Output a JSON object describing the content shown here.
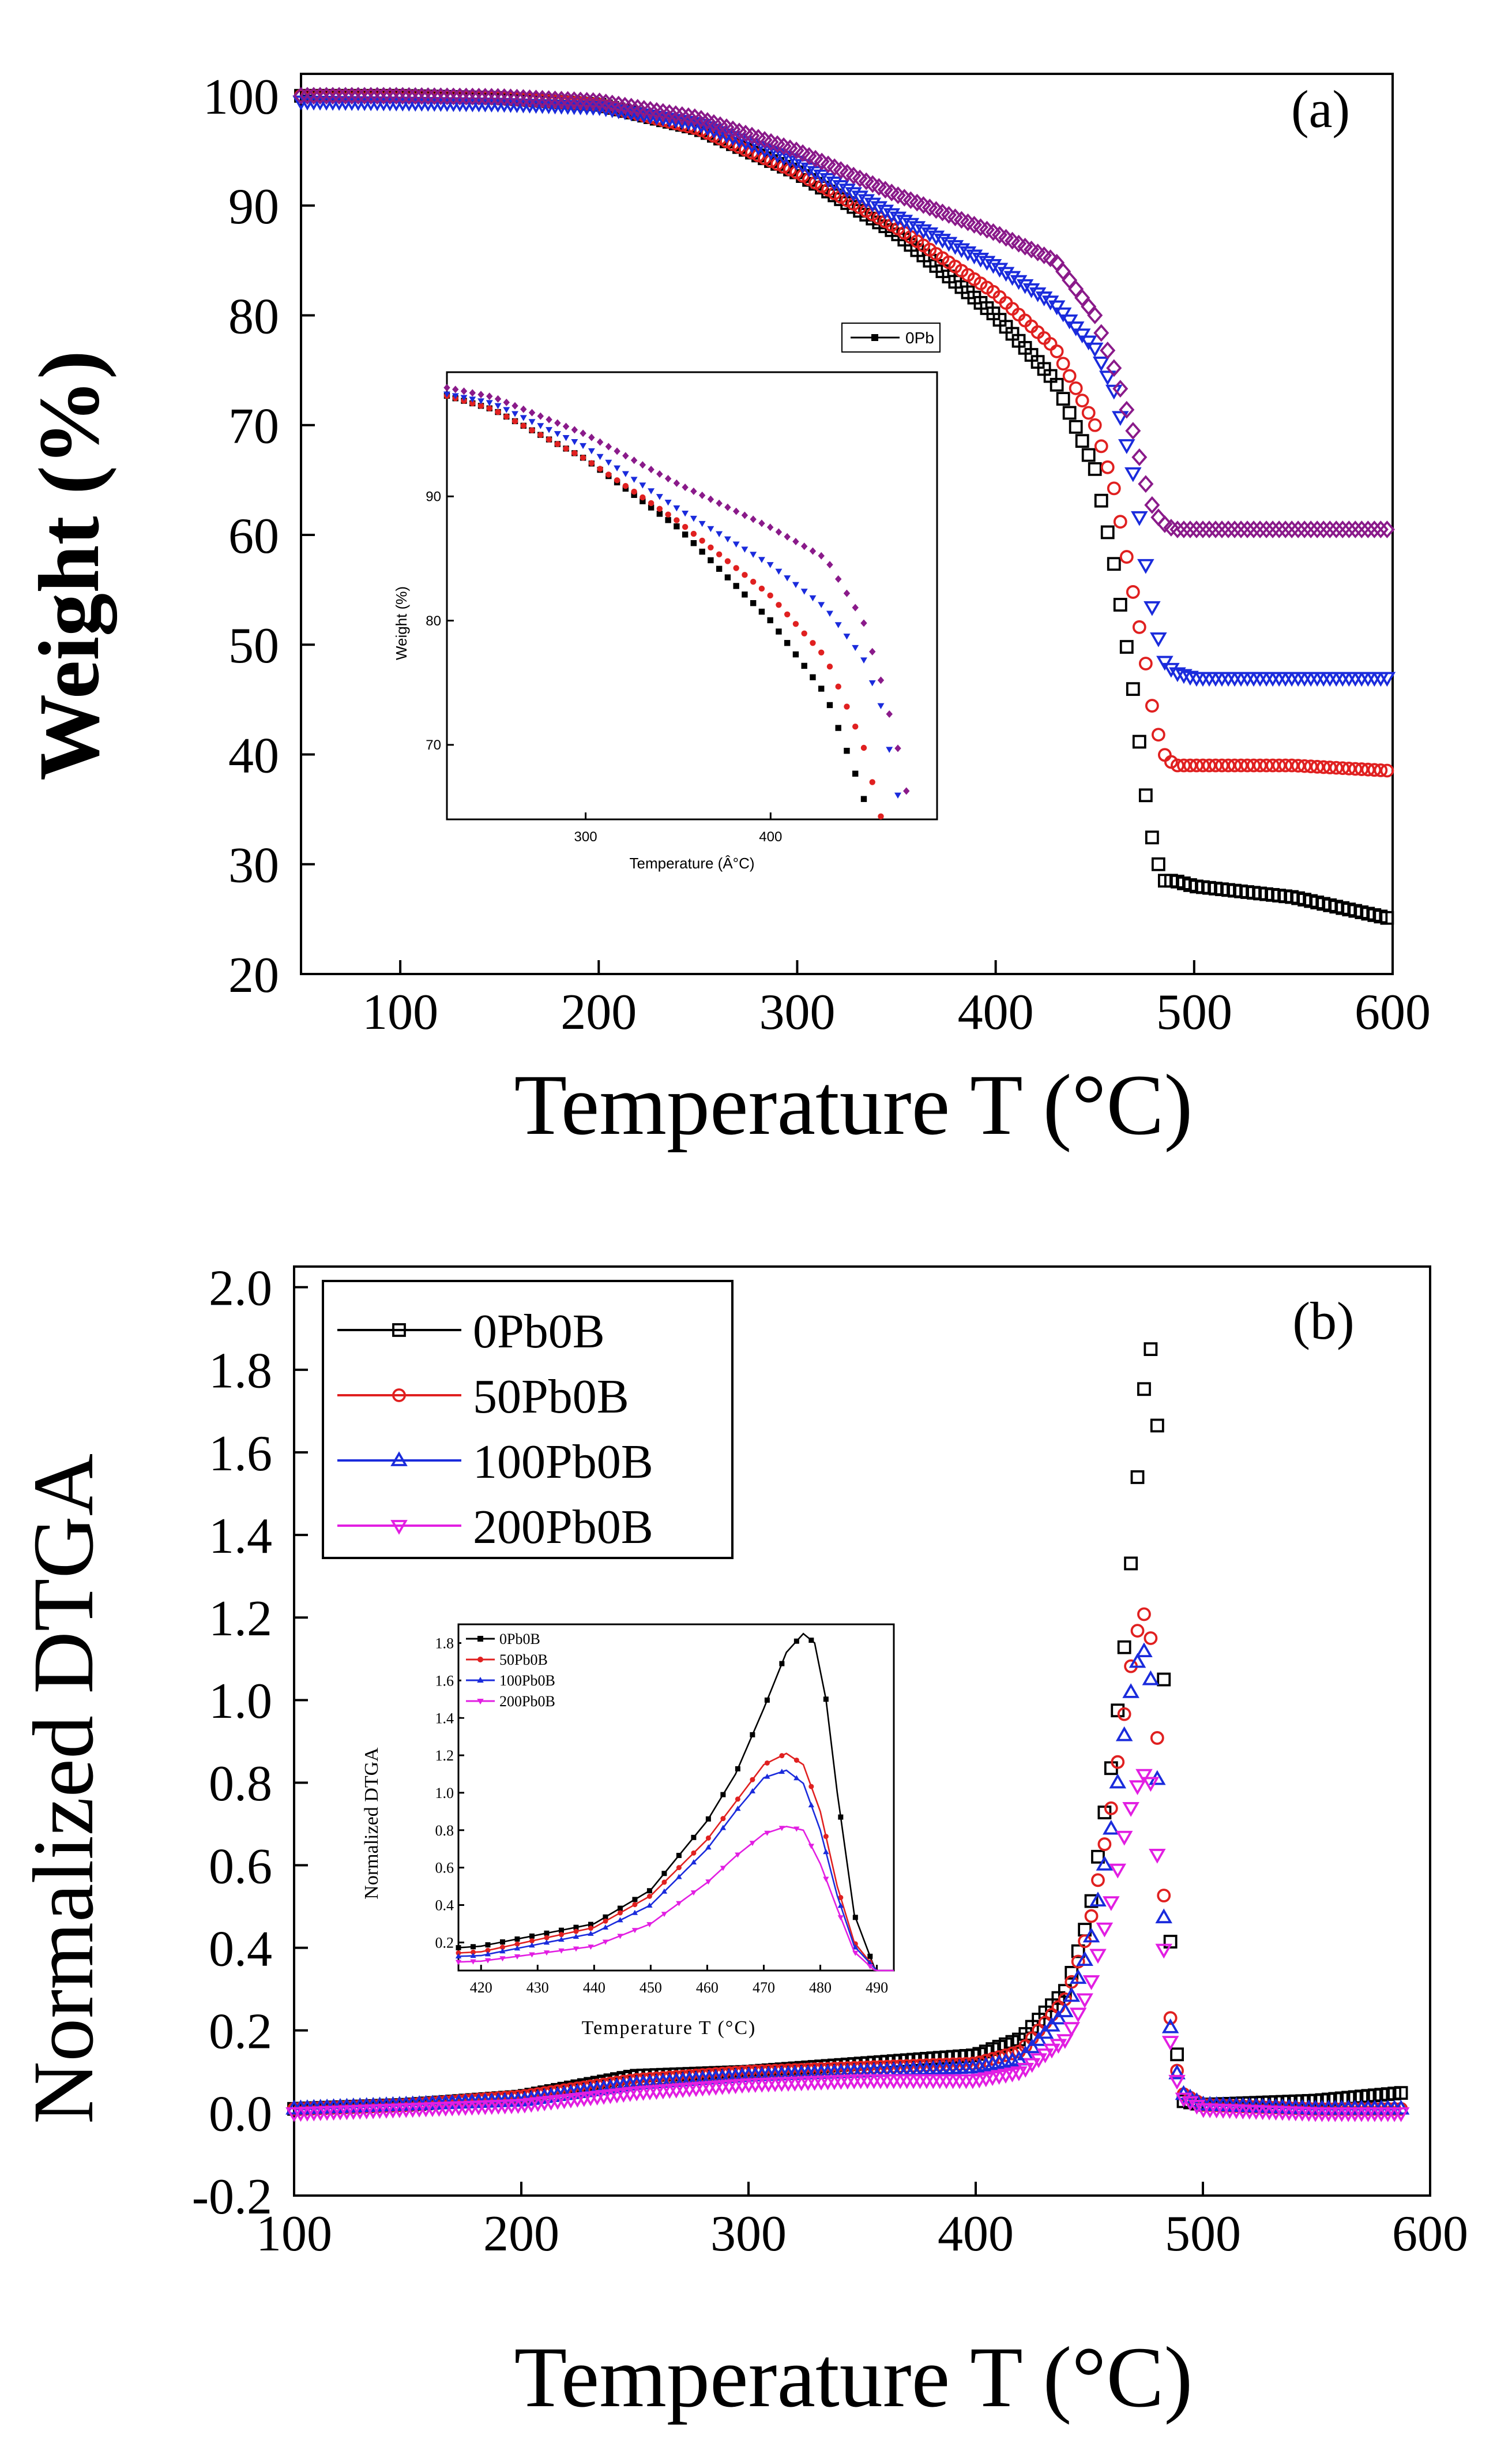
{
  "chart_data": [
    {
      "type": "scatter",
      "panel_label": "(a)",
      "xlabel": "Temperature T (°C)",
      "ylabel": "Weight (%)",
      "xlim": [
        50,
        600
      ],
      "ylim": [
        20,
        102
      ],
      "xticks": [
        100,
        200,
        300,
        400,
        500,
        600
      ],
      "yticks": [
        20,
        30,
        40,
        50,
        60,
        70,
        80,
        90,
        100
      ],
      "grid": false,
      "series": [
        {
          "color": "#000000",
          "marker": "square",
          "x": [
            50,
            100,
            150,
            200,
            250,
            300,
            350,
            400,
            430,
            450,
            460,
            470,
            475,
            480,
            485,
            490,
            500,
            550,
            600
          ],
          "y": [
            100,
            100,
            99.8,
            99.2,
            97,
            93,
            87.5,
            80,
            74,
            66,
            57,
            45,
            37,
            31,
            28.5,
            28.5,
            28,
            27,
            25
          ]
        },
        {
          "color": "#e02020",
          "marker": "circle",
          "x": [
            50,
            100,
            150,
            200,
            250,
            300,
            350,
            400,
            430,
            450,
            460,
            470,
            475,
            480,
            485,
            490,
            500,
            550,
            600
          ],
          "y": [
            100,
            100,
            99.8,
            99.2,
            97,
            93,
            88,
            82,
            77,
            70,
            64,
            54,
            49,
            43,
            40,
            39,
            39,
            39,
            38.5
          ]
        },
        {
          "color": "#1a2bdc",
          "marker": "triangle-down",
          "x": [
            50,
            100,
            150,
            200,
            250,
            300,
            350,
            400,
            430,
            450,
            460,
            470,
            475,
            480,
            485,
            490,
            500,
            550,
            600
          ],
          "y": [
            99.5,
            99.4,
            99.3,
            99,
            97.5,
            94,
            89,
            84.5,
            81,
            77,
            73,
            65,
            58,
            52,
            48.5,
            47.5,
            47,
            47,
            47
          ]
        },
        {
          "color": "#8a1a8a",
          "marker": "diamond",
          "x": [
            50,
            100,
            150,
            200,
            250,
            300,
            350,
            400,
            430,
            450,
            460,
            470,
            475,
            480,
            485,
            490,
            500,
            550,
            600
          ],
          "y": [
            100,
            100,
            99.9,
            99.5,
            98,
            95,
            91,
            87.5,
            85,
            80,
            75,
            69,
            65,
            62,
            61,
            60.5,
            60.5,
            60.5,
            60.5
          ]
        }
      ],
      "inset": {
        "xlabel": "Temperature (Â°C)",
        "ylabel": "Weight (%)",
        "legend": [
          "0Pb"
        ],
        "xlim": [
          225,
          490
        ],
        "ylim": [
          64,
          100
        ],
        "xticks": [
          300,
          400
        ],
        "yticks": [
          70,
          80,
          90
        ]
      }
    },
    {
      "type": "scatter",
      "panel_label": "(b)",
      "xlabel": "Temperature T (°C)",
      "ylabel": "Normalized DTGA",
      "xlim": [
        100,
        600
      ],
      "ylim": [
        -0.2,
        2.05
      ],
      "xticks": [
        100,
        200,
        300,
        400,
        500,
        600
      ],
      "yticks": [
        -0.2,
        0.0,
        0.2,
        0.4,
        0.6,
        0.8,
        1.0,
        1.2,
        1.4,
        1.6,
        1.8,
        2.0
      ],
      "legend_position": "top-left",
      "grid": false,
      "series": [
        {
          "name": "0Pb0B",
          "color": "#000000",
          "marker": "square",
          "x": [
            100,
            150,
            200,
            250,
            300,
            350,
            400,
            420,
            440,
            450,
            460,
            465,
            470,
            474,
            477,
            479,
            481,
            483,
            486,
            490,
            500,
            550,
            590
          ],
          "y": [
            0.01,
            0.02,
            0.04,
            0.09,
            0.1,
            0.12,
            0.14,
            0.18,
            0.3,
            0.48,
            0.85,
            1.1,
            1.45,
            1.75,
            1.85,
            1.8,
            1.5,
            1.0,
            0.35,
            0.03,
            0.02,
            0.03,
            0.05
          ]
        },
        {
          "name": "50Pb0B",
          "color": "#e02020",
          "marker": "circle",
          "x": [
            100,
            150,
            200,
            250,
            300,
            350,
            400,
            420,
            440,
            450,
            460,
            465,
            470,
            474,
            477,
            480,
            483,
            486,
            490,
            500,
            550,
            590
          ],
          "y": [
            0.01,
            0.02,
            0.04,
            0.08,
            0.1,
            0.11,
            0.12,
            0.15,
            0.28,
            0.45,
            0.75,
            0.95,
            1.15,
            1.21,
            1.15,
            0.9,
            0.5,
            0.2,
            0.05,
            0.02,
            0.01,
            0.01
          ]
        },
        {
          "name": "100Pb0B",
          "color": "#1a2bdc",
          "marker": "triangle-up",
          "x": [
            100,
            150,
            200,
            250,
            300,
            350,
            400,
            420,
            440,
            450,
            460,
            465,
            470,
            474,
            477,
            480,
            483,
            486,
            490,
            500,
            550,
            590
          ],
          "y": [
            0.01,
            0.02,
            0.03,
            0.07,
            0.09,
            0.1,
            0.11,
            0.13,
            0.25,
            0.4,
            0.7,
            0.9,
            1.08,
            1.12,
            1.05,
            0.8,
            0.45,
            0.18,
            0.05,
            0.02,
            0.01,
            0.01
          ]
        },
        {
          "name": "200Pb0B",
          "color": "#e21ee2",
          "marker": "triangle-down",
          "x": [
            100,
            150,
            200,
            250,
            300,
            350,
            400,
            420,
            440,
            450,
            460,
            465,
            470,
            474,
            477,
            480,
            483,
            486,
            490,
            500,
            550,
            590
          ],
          "y": [
            0.0,
            0.01,
            0.02,
            0.05,
            0.07,
            0.08,
            0.08,
            0.1,
            0.18,
            0.3,
            0.52,
            0.66,
            0.78,
            0.82,
            0.8,
            0.62,
            0.38,
            0.15,
            0.04,
            0.01,
            0.0,
            0.0
          ]
        }
      ],
      "inset": {
        "xlabel": "Temperature T (°C)",
        "ylabel": "Normalized DTGA",
        "legend": [
          "0Pb0B",
          "50Pb0B",
          "100Pb0B",
          "200Pb0B"
        ],
        "xlim": [
          416,
          493
        ],
        "ylim": [
          0.05,
          1.9
        ],
        "xticks": [
          420,
          430,
          440,
          450,
          460,
          470,
          480,
          490
        ],
        "yticks": [
          0.2,
          0.4,
          0.6,
          0.8,
          1.0,
          1.2,
          1.4,
          1.6,
          1.8
        ]
      }
    }
  ]
}
